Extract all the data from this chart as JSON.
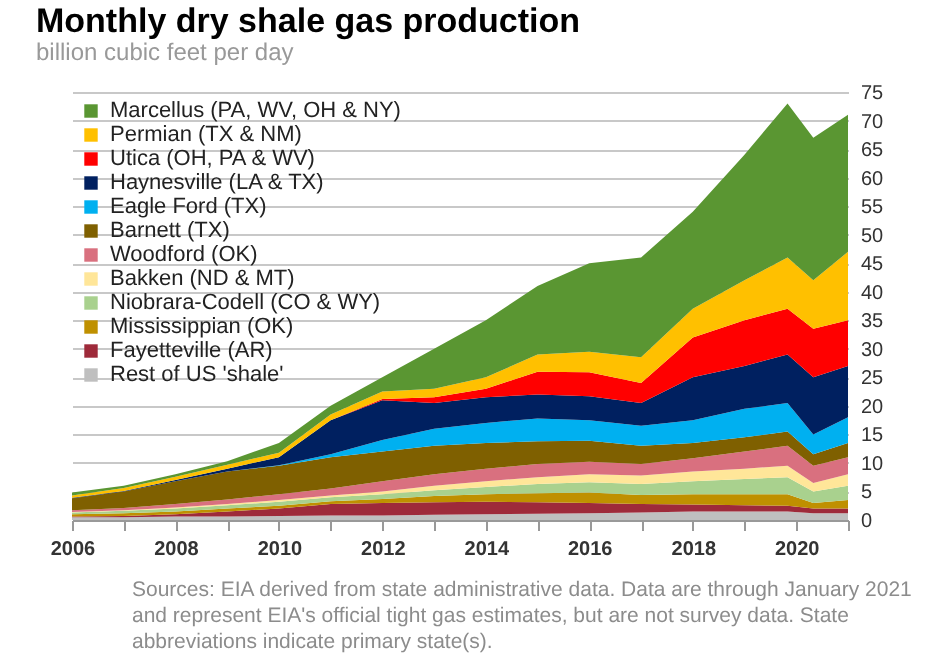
{
  "chart_data": {
    "type": "area",
    "stacked": true,
    "title": "Monthly dry shale gas production",
    "subtitle": "billion cubic feet per day",
    "x": [
      "2006-01",
      "2007-01",
      "2008-01",
      "2009-01",
      "2010-01",
      "2011-01",
      "2012-01",
      "2013-01",
      "2014-01",
      "2015-01",
      "2016-01",
      "2017-01",
      "2018-01",
      "2019-01",
      "2019-11",
      "2020-05",
      "2021-01"
    ],
    "series": [
      {
        "name": "Rest of US 'shale'",
        "color": "#bfbfbf",
        "values": [
          0.5,
          0.5,
          0.6,
          0.6,
          0.7,
          0.8,
          0.8,
          0.9,
          1,
          1.1,
          1.2,
          1.3,
          1.5,
          1.5,
          1.5,
          1.2,
          1.2
        ]
      },
      {
        "name": "Fayetteville (AR)",
        "color": "#9e2a3a",
        "values": [
          0.1,
          0.2,
          0.4,
          0.9,
          1.3,
          2,
          2.2,
          2.2,
          2.2,
          2,
          1.8,
          1.5,
          1.2,
          1.1,
          1,
          0.8,
          0.8
        ]
      },
      {
        "name": "Mississippian (OK)",
        "color": "#bf9000",
        "values": [
          0.4,
          0.5,
          0.5,
          0.5,
          0.5,
          0.5,
          0.7,
          1.1,
          1.3,
          1.6,
          1.8,
          1.6,
          1.8,
          1.9,
          2,
          1,
          1.5
        ]
      },
      {
        "name": "Niobrara-Codell (CO & WY)",
        "color": "#a9d18e",
        "values": [
          0.3,
          0.4,
          0.5,
          0.6,
          0.7,
          0.7,
          0.8,
          1,
          1.3,
          1.6,
          1.8,
          1.9,
          2.3,
          2.7,
          3,
          2,
          2.5
        ]
      },
      {
        "name": "Bakken (ND & MT)",
        "color": "#ffe699",
        "values": [
          0.1,
          0.1,
          0.2,
          0.2,
          0.3,
          0.3,
          0.5,
          0.8,
          1,
          1.2,
          1.4,
          1.5,
          1.7,
          1.8,
          2,
          1.5,
          2
        ]
      },
      {
        "name": "Woodford (OK)",
        "color": "#d9707f",
        "values": [
          0.3,
          0.4,
          0.6,
          0.8,
          1,
          1.2,
          1.8,
          2,
          2.2,
          2.3,
          2.2,
          2,
          2.3,
          3,
          3.5,
          3,
          3
        ]
      },
      {
        "name": "Barnett (TX)",
        "color": "#7f6000",
        "values": [
          2.1,
          2.9,
          4,
          4.9,
          5,
          5.5,
          5.2,
          5,
          4.5,
          4,
          3.7,
          3.2,
          2.7,
          2.5,
          2.5,
          2,
          2.5
        ]
      },
      {
        "name": "Eagle Ford (TX)",
        "color": "#00b0f0",
        "values": [
          0,
          0,
          0,
          0,
          0.1,
          0.5,
          2,
          3,
          3.5,
          4,
          3.6,
          3.5,
          4,
          5,
          5,
          3.5,
          4.5
        ]
      },
      {
        "name": "Haynesville (LA & TX)",
        "color": "#002060",
        "values": [
          0.1,
          0.1,
          0.2,
          0.5,
          1.4,
          6,
          7,
          4.5,
          4.5,
          4.2,
          4.2,
          4,
          7.5,
          7.5,
          8.5,
          10,
          9
        ]
      },
      {
        "name": "Utica (OH, PA & WV)",
        "color": "#ff0000",
        "values": [
          0,
          0,
          0,
          0,
          0,
          0,
          0.2,
          1,
          1.5,
          4,
          4.2,
          3.5,
          7,
          8,
          8,
          8.5,
          8
        ]
      },
      {
        "name": "Permian (TX & NM)",
        "color": "#ffc000",
        "values": [
          0.4,
          0.5,
          0.6,
          0.7,
          0.8,
          1,
          1.3,
          1.5,
          2,
          3,
          3.6,
          4.5,
          5,
          7,
          9,
          8.5,
          12
        ]
      },
      {
        "name": "Marcellus (PA, WV, OH & NY)",
        "color": "#5a9632",
        "values": [
          0.5,
          0.4,
          0.4,
          0.6,
          1.7,
          1.5,
          2.5,
          7,
          10,
          12,
          15.5,
          17.5,
          17,
          22,
          27,
          25,
          24
        ]
      }
    ],
    "xlim": [
      "2006-01",
      "2021-01"
    ],
    "xticks": [
      {
        "value": "2006",
        "label": "2006"
      },
      {
        "value": "2007",
        "label": null
      },
      {
        "value": "2008",
        "label": "2008"
      },
      {
        "value": "2009",
        "label": null
      },
      {
        "value": "2010",
        "label": "2010"
      },
      {
        "value": "2011",
        "label": null
      },
      {
        "value": "2012",
        "label": "2012"
      },
      {
        "value": "2013",
        "label": null
      },
      {
        "value": "2014",
        "label": "2014"
      },
      {
        "value": "2015",
        "label": null
      },
      {
        "value": "2016",
        "label": "2016"
      },
      {
        "value": "2017",
        "label": null
      },
      {
        "value": "2018",
        "label": "2018"
      },
      {
        "value": "2019",
        "label": null
      },
      {
        "value": "2020",
        "label": "2020"
      },
      {
        "value": "2021",
        "label": null
      }
    ],
    "ylim": [
      0,
      75
    ],
    "yticks": [
      0,
      5,
      10,
      15,
      20,
      25,
      30,
      35,
      40,
      45,
      50,
      55,
      60,
      65,
      70,
      75
    ],
    "grid": "y",
    "legend": "top left",
    "annotations": [
      "Sources: EIA derived from state administrative data.",
      "Data are through January 2021  and represent EIA's  official tight gas estimates, but are not survey data. State abbreviations indicate primary state(s)."
    ]
  }
}
